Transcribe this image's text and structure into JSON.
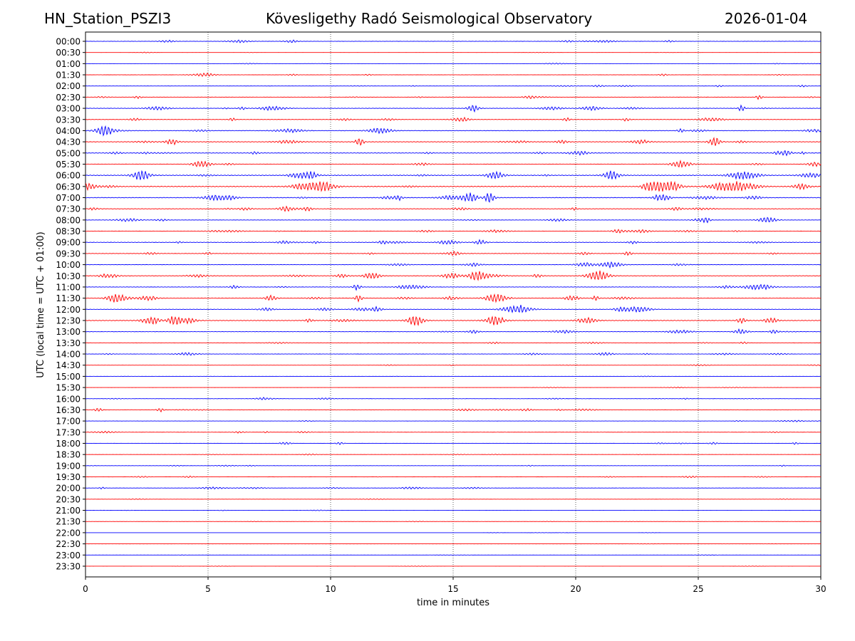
{
  "header": {
    "station": "HN_Station_PSZI3",
    "observatory": "Kövesligethy Radó Seismological Observatory",
    "date": "2026-01-04"
  },
  "chart_data": {
    "type": "line",
    "title": "Kövesligethy Radó Seismological Observatory",
    "xlabel": "time in minutes",
    "ylabel": "UTC (local time = UTC + 01:00)",
    "xlim": [
      0,
      30
    ],
    "x_ticks": [
      "0",
      "5",
      "10",
      "15",
      "20",
      "25",
      "30"
    ],
    "x_tick_values": [
      0,
      5,
      10,
      15,
      20,
      25,
      30
    ],
    "vertical_grid": true,
    "grid_style": "dotted",
    "series_colors": [
      "#0000ff",
      "#ff0000"
    ],
    "row_labels": [
      "00:00",
      "00:30",
      "01:00",
      "01:30",
      "02:00",
      "02:30",
      "03:00",
      "03:30",
      "04:00",
      "04:30",
      "05:00",
      "05:30",
      "06:00",
      "06:30",
      "07:00",
      "07:30",
      "08:00",
      "08:30",
      "09:00",
      "09:30",
      "10:00",
      "10:30",
      "11:00",
      "11:30",
      "12:00",
      "12:30",
      "13:00",
      "13:30",
      "14:00",
      "14:30",
      "15:00",
      "15:30",
      "16:00",
      "16:30",
      "17:00",
      "17:30",
      "18:00",
      "18:30",
      "19:00",
      "19:30",
      "20:00",
      "20:30",
      "21:00",
      "21:30",
      "22:00",
      "22:30",
      "23:00",
      "23:30"
    ],
    "row_activity": [
      0.3,
      0.1,
      0.15,
      0.2,
      0.25,
      0.35,
      0.5,
      0.4,
      0.6,
      0.65,
      0.6,
      0.45,
      0.8,
      0.9,
      0.7,
      0.55,
      0.35,
      0.4,
      0.5,
      0.45,
      0.4,
      0.6,
      0.45,
      0.55,
      0.5,
      0.7,
      0.35,
      0.25,
      0.3,
      0.15,
      0.1,
      0.1,
      0.25,
      0.4,
      0.2,
      0.2,
      0.25,
      0.15,
      0.2,
      0.2,
      0.25,
      0.1,
      0.1,
      0.08,
      0.06,
      0.06,
      0.06,
      0.05
    ]
  }
}
